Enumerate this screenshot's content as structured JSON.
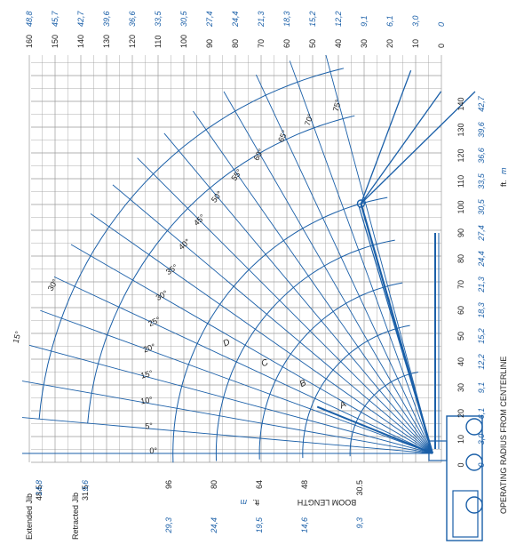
{
  "colors": {
    "grid": "#9a9a9a",
    "blue": "#1a5fa8",
    "text": "#222222",
    "crane": "#1a5fa8"
  },
  "top_axis": {
    "ft": [
      "160",
      "150",
      "140",
      "130",
      "120",
      "110",
      "100",
      "90",
      "80",
      "70",
      "60",
      "50",
      "40",
      "30",
      "20",
      "10",
      "0"
    ],
    "m": [
      "48,8",
      "45,7",
      "42,7",
      "39,6",
      "36,6",
      "33,5",
      "30,5",
      "27,4",
      "24,4",
      "21,3",
      "18,3",
      "15,2",
      "12,2",
      "9,1",
      "6,1",
      "3,0",
      "0"
    ]
  },
  "right_axis": {
    "ft": [
      "0",
      "10",
      "20",
      "30",
      "40",
      "50",
      "60",
      "70",
      "80",
      "90",
      "100",
      "110",
      "120",
      "130",
      "140"
    ],
    "m": [
      "0",
      "3,0",
      "6,1",
      "9,1",
      "12,2",
      "15,2",
      "18,3",
      "21,3",
      "24,4",
      "27,4",
      "30,5",
      "33,5",
      "36,6",
      "39,6",
      "42,7"
    ],
    "title": "OPERATING RADIUS FROM CENTERLINE",
    "unit_ft": "ft.",
    "unit_m": "m"
  },
  "bottom_axis": {
    "title": "BOOM LENGTH",
    "unit_ft": "ft.",
    "unit_m": "m",
    "booms": [
      {
        "ft": "30.5",
        "m": "9,3"
      },
      {
        "ft": "48",
        "m": "14,6"
      },
      {
        "ft": "64",
        "m": "19,5"
      },
      {
        "ft": "80",
        "m": "24,4"
      },
      {
        "ft": "96",
        "m": "29,3"
      }
    ],
    "jibs": [
      {
        "name": "Retracted Jib",
        "ft": "31.5",
        "m": "9,6"
      },
      {
        "name": "Extended Jib",
        "ft": "48.5",
        "m": "14,8"
      }
    ]
  },
  "boom_angles": [
    "0°",
    "5°",
    "10°",
    "15°",
    "20°",
    "25°",
    "30°",
    "35°",
    "40°",
    "45°",
    "50°",
    "55°",
    "60°",
    "65°",
    "70°",
    "75°"
  ],
  "jib_offsets": [
    "15°",
    "30°"
  ],
  "boom_sections": [
    "A",
    "B",
    "C",
    "D"
  ]
}
